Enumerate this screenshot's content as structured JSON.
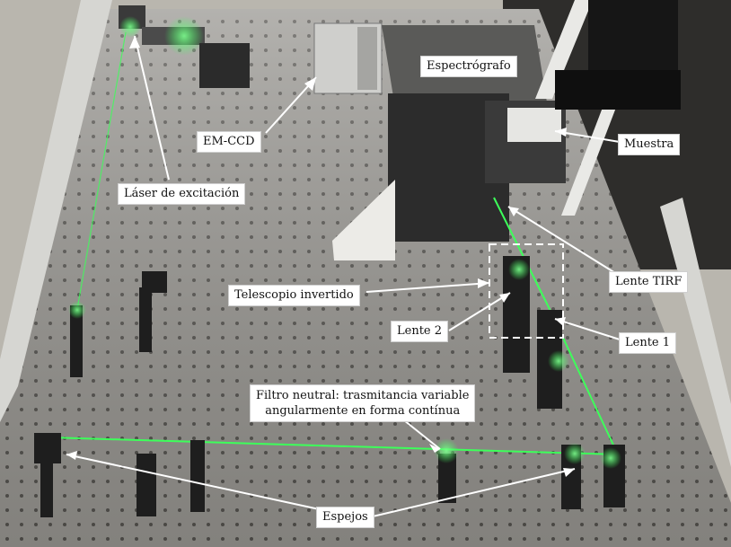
{
  "figure": {
    "labels": {
      "spectrograph": "Espectrógrafo",
      "emccd": "EM-CCD",
      "sample": "Muestra",
      "excitation_laser": "Láser de excitación",
      "tirf_lens": "Lente TIRF",
      "inverted_telescope": "Telescopio invertido",
      "lens2": "Lente 2",
      "lens1": "Lente 1",
      "nd_filter_line1": "Filtro neutral: trasmitancia variable",
      "nd_filter_line2": "angularmente  en forma contínua",
      "mirrors": "Espejos"
    },
    "colors": {
      "table_surface": "#9a9893",
      "table_rail": "#d6d6d2",
      "laser_beam": "#3dff5a",
      "equipment_dark": "#2a2a2a",
      "label_bg": "#ffffff",
      "annotation_line": "#ffffff"
    }
  }
}
